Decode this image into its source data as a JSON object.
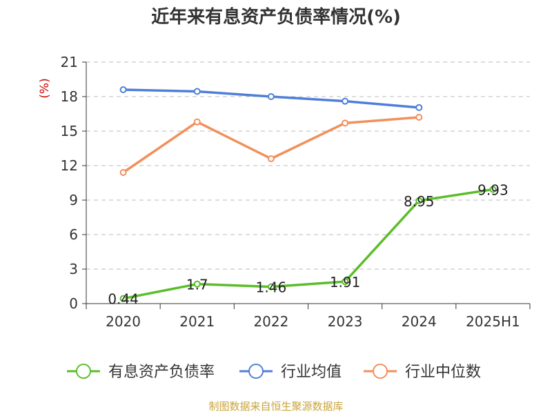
{
  "title": "近年来有息资产负债率情况(%)",
  "source": "制图数据来自恒生聚源数据库",
  "chart_data": {
    "type": "line",
    "title": "近年来有息资产负债率情况(%)",
    "ylabel": "(%)",
    "xlabel": "",
    "categories": [
      "2020",
      "2021",
      "2022",
      "2023",
      "2024",
      "2025H1"
    ],
    "ylim": [
      0,
      21
    ],
    "yticks": [
      0,
      3,
      6,
      9,
      12,
      15,
      18,
      21
    ],
    "ytick_labels": [
      "0",
      "3",
      "6",
      "9",
      "12",
      "15",
      "18",
      "21"
    ],
    "grid": true,
    "legend_position": "bottom",
    "series": [
      {
        "name": "有息资产负债率",
        "color": "#5cbd2b",
        "values": [
          0.44,
          1.7,
          1.46,
          1.91,
          8.95,
          9.93
        ],
        "labels": [
          "0.44",
          "1.7",
          "1.46",
          "1.91",
          "8.95",
          "9.93"
        ]
      },
      {
        "name": "行业均值",
        "color": "#4f7fd9",
        "values": [
          18.6,
          18.45,
          18.0,
          17.6,
          17.05,
          null
        ]
      },
      {
        "name": "行业中位数",
        "color": "#f28f5a",
        "values": [
          11.4,
          15.8,
          12.6,
          15.7,
          16.2,
          null
        ]
      }
    ]
  }
}
